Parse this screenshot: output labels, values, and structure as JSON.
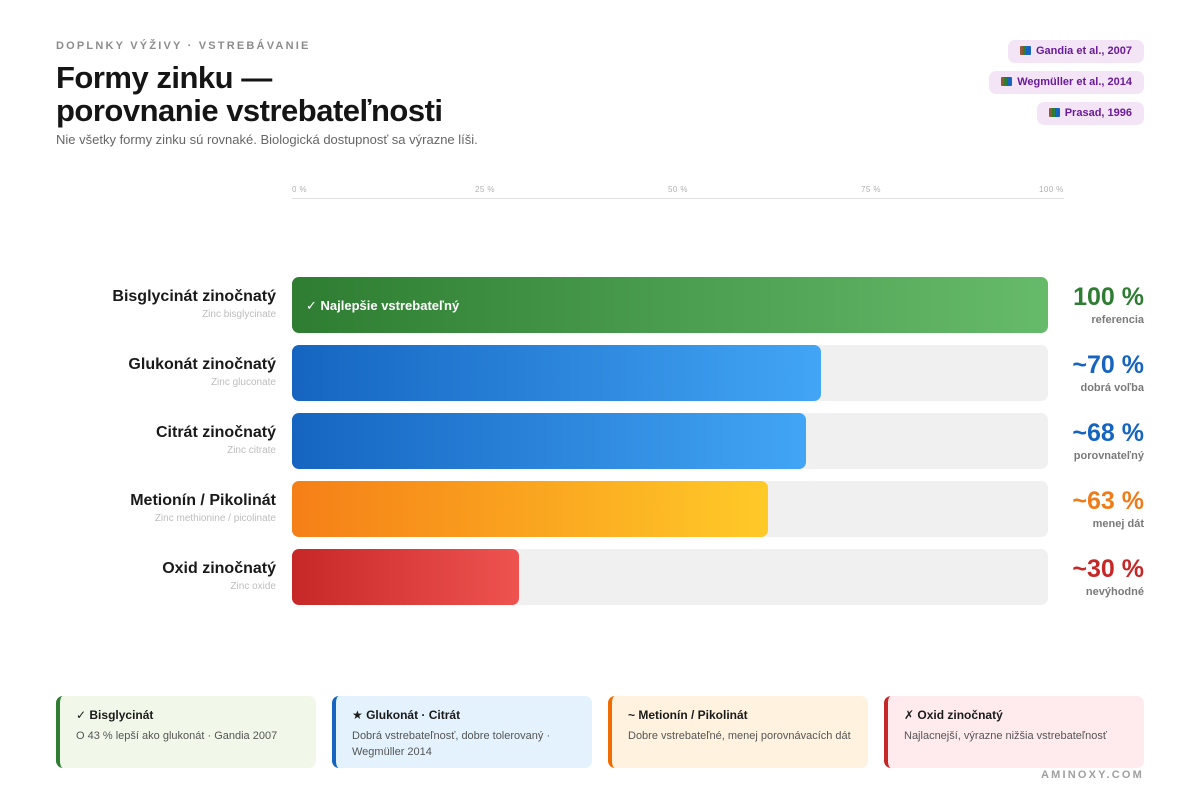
{
  "header": {
    "eyebrow": "DOPLNKY VÝŽIVY · VSTREBÁVANIE",
    "title_line1": "Formy zinku —",
    "title_line2": "porovnanie vstrebateľnosti",
    "subtitle": "Nie všetky formy zinku sú rovnaké. Biologická dostupnosť sa výrazne líši."
  },
  "references": [
    {
      "icon": "books-icon",
      "label": "Gandia et al., 2007"
    },
    {
      "icon": "books-icon",
      "label": "Wegmüller et al., 2014"
    },
    {
      "icon": "books-icon",
      "label": "Prasad, 1996"
    }
  ],
  "chart_data": {
    "type": "bar",
    "orientation": "horizontal",
    "x_axis": {
      "ticks": [
        "0 %",
        "25 %",
        "50 %",
        "75 %",
        "100 %"
      ],
      "tick_values": [
        0,
        25,
        50,
        75,
        100
      ],
      "range": [
        0,
        100
      ]
    },
    "categories": [
      "Bisglycinát zinočnatý",
      "Glukonát zinočnatý",
      "Citrát zinočnatý",
      "Metionín / Pikolinát",
      "Oxid zinočnatý"
    ],
    "subcategories": [
      "Zinc bisglycinate",
      "Zinc gluconate",
      "Zinc citrate",
      "Zinc methionine / picolinate",
      "Zinc oxide"
    ],
    "values": [
      100,
      70,
      68,
      63,
      30
    ],
    "value_labels": [
      "100 %",
      "~70 %",
      "~68 %",
      "~63 %",
      "~30 %"
    ],
    "notes": [
      "referencia",
      "dobrá voľba",
      "porovnateľný",
      "menej dát",
      "nevýhodné"
    ],
    "bar_inner_labels": [
      "✓ Najlepšie vstrebateľný",
      "",
      "",
      "",
      ""
    ],
    "colors": [
      {
        "start": "#2e7d32",
        "end": "#66bb6a",
        "text": "#2e7d32"
      },
      {
        "start": "#1565c0",
        "end": "#42a5f5",
        "text": "#1565c0"
      },
      {
        "start": "#1565c0",
        "end": "#42a5f5",
        "text": "#1565c0"
      },
      {
        "start": "#f57f17",
        "end": "#ffca28",
        "text": "#ef7c1a"
      },
      {
        "start": "#c62828",
        "end": "#ef5350",
        "text": "#c62828"
      }
    ],
    "track_color": "#f0f0f0",
    "grid": false
  },
  "cards": [
    {
      "title": "✓ Bisglycinát",
      "text": "O 43 % lepší ako glukonát · Gandia 2007",
      "bg": "#f1f8e9",
      "accent": "#2e7d32"
    },
    {
      "title": "★ Glukonát · Citrát",
      "text": "Dobrá vstrebateľnosť, dobre tolerovaný · Wegmüller 2014",
      "bg": "#e3f2fd",
      "accent": "#1565c0"
    },
    {
      "title": "~ Metionín / Pikolinát",
      "text": "Dobre vstrebateľné, menej porovnávacích dát",
      "bg": "#fff3e0",
      "accent": "#ef6c00"
    },
    {
      "title": "✗ Oxid zinočnatý",
      "text": "Najlacnejší, výrazne nižšia vstrebateľnosť",
      "bg": "#ffebee",
      "accent": "#c62828"
    }
  ],
  "footer": {
    "brand": "AMINOXY.COM"
  }
}
